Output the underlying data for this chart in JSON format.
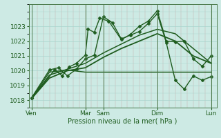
{
  "xlabel": "Pression niveau de la mer( hPa )",
  "background_color": "#cdeae4",
  "grid_color": "#a8d4cc",
  "line_color": "#1e5c1e",
  "vline_color": "#4a7a4a",
  "tick_color": "#1e5c1e",
  "label_color": "#1e5c1e",
  "ylim": [
    1017.5,
    1024.5
  ],
  "yticks": [
    1018,
    1019,
    1020,
    1021,
    1022,
    1023
  ],
  "xlim": [
    35,
    315
  ],
  "series": [
    {
      "x": [
        0,
        1.3,
        1.7,
        2.1,
        2.5,
        3.0,
        3.15,
        3.5,
        3.8,
        4.3,
        5.0,
        5.5,
        6.0,
        6.5,
        7.0,
        7.5,
        8.0,
        8.5,
        9.0,
        9.5,
        10.0
      ],
      "y": [
        1018.15,
        1020.05,
        1019.65,
        1020.25,
        1020.5,
        1021.05,
        1022.8,
        1022.6,
        1023.55,
        1023.35,
        1022.1,
        1022.45,
        1023.0,
        1023.35,
        1024.05,
        1022.0,
        1021.95,
        1022.0,
        1020.8,
        1020.3,
        1021.0
      ],
      "marker": "D",
      "markersize": 2.5,
      "linewidth": 1.0
    },
    {
      "x": [
        0,
        1.0,
        1.5,
        2.0,
        2.5,
        3.0,
        3.5,
        4.0,
        4.5,
        5.0,
        5.5,
        6.0,
        6.5,
        7.0,
        7.5,
        8.0,
        8.5,
        9.0,
        9.5,
        10.0
      ],
      "y": [
        1018.15,
        1020.05,
        1020.2,
        1019.65,
        1020.1,
        1020.8,
        1021.05,
        1023.65,
        1023.25,
        1022.15,
        1022.4,
        1022.65,
        1023.2,
        1023.85,
        1021.9,
        1019.35,
        1018.75,
        1019.65,
        1019.35,
        1019.6
      ],
      "marker": "P",
      "markersize": 3,
      "linewidth": 1.0
    },
    {
      "x": [
        0,
        1.0,
        2.0,
        3.0,
        4.0,
        5.0,
        6.0,
        7.0,
        8.0,
        9.0,
        10.0
      ],
      "y": [
        1018.1,
        1019.5,
        1020.0,
        1020.2,
        1020.9,
        1021.5,
        1022.0,
        1022.5,
        1022.0,
        1021.0,
        1020.5
      ],
      "marker": null,
      "markersize": 0,
      "linewidth": 1.3
    },
    {
      "x": [
        0,
        1.0,
        2.0,
        3.0,
        4.0,
        5.0,
        6.0,
        7.0,
        8.0,
        9.0,
        10.0
      ],
      "y": [
        1018.1,
        1019.7,
        1020.1,
        1020.5,
        1021.2,
        1021.8,
        1022.4,
        1022.8,
        1022.5,
        1021.5,
        1020.5
      ],
      "marker": null,
      "markersize": 0,
      "linewidth": 1.1
    },
    {
      "x": [
        0,
        1.0,
        2.0,
        3.0,
        4.0,
        5.0,
        6.0,
        7.0,
        8.0,
        9.0,
        10.0
      ],
      "y": [
        1018.1,
        1019.9,
        1020.05,
        1019.9,
        1019.9,
        1019.9,
        1019.9,
        1019.9,
        1019.9,
        1019.9,
        1019.9
      ],
      "marker": null,
      "markersize": 0,
      "linewidth": 1.1
    }
  ],
  "vlines_x": [
    0,
    3.0,
    4.0,
    7.0,
    10.0
  ],
  "xtick_positions": [
    0,
    3.0,
    4.0,
    7.0,
    10.0
  ],
  "xtick_labels": [
    "Ven",
    "Mar",
    "Sam",
    "Dim",
    "Lun"
  ]
}
